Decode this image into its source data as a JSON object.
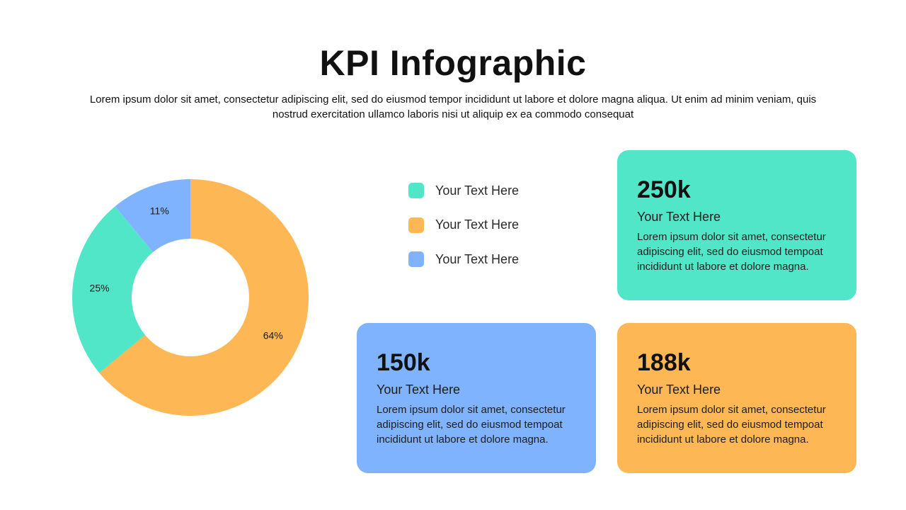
{
  "title": "KPI Infographic",
  "subtitle": "Lorem ipsum dolor sit amet, consectetur adipiscing elit, sed do eiusmod tempor incididunt ut labore et dolore magna aliqua. Ut enim ad minim veniam, quis nostrud exercitation ullamco laboris nisi ut aliquip ex ea commodo consequat",
  "colors": {
    "teal": "#52e6c9",
    "orange": "#fdb754",
    "blue": "#80b3fd"
  },
  "chart_data": {
    "type": "pie",
    "variant": "donut",
    "slices": [
      {
        "value": 64,
        "label": "64%",
        "color": "#fdb754"
      },
      {
        "value": 25,
        "label": "25%",
        "color": "#52e6c9"
      },
      {
        "value": 11,
        "label": "11%",
        "color": "#80b3fd"
      }
    ]
  },
  "legend": [
    {
      "label": "Your Text Here",
      "color": "#52e6c9"
    },
    {
      "label": "Your Text Here",
      "color": "#fdb754"
    },
    {
      "label": "Your Text Here",
      "color": "#80b3fd"
    }
  ],
  "cards": [
    {
      "value": "250k",
      "title": "Your Text Here",
      "desc": "Lorem ipsum dolor sit amet, consectetur adipiscing elit, sed do eiusmod tempoat incididunt ut labore et dolore magna.",
      "color": "#52e6c9"
    },
    {
      "value": "150k",
      "title": "Your Text Here",
      "desc": "Lorem ipsum dolor sit amet, consectetur adipiscing elit, sed do eiusmod tempoat incididunt ut labore et dolore magna.",
      "color": "#80b3fd"
    },
    {
      "value": "188k",
      "title": "Your Text Here",
      "desc": "Lorem ipsum dolor sit amet, consectetur adipiscing elit, sed do eiusmod tempoat incididunt ut labore et dolore magna.",
      "color": "#fdb754"
    }
  ]
}
